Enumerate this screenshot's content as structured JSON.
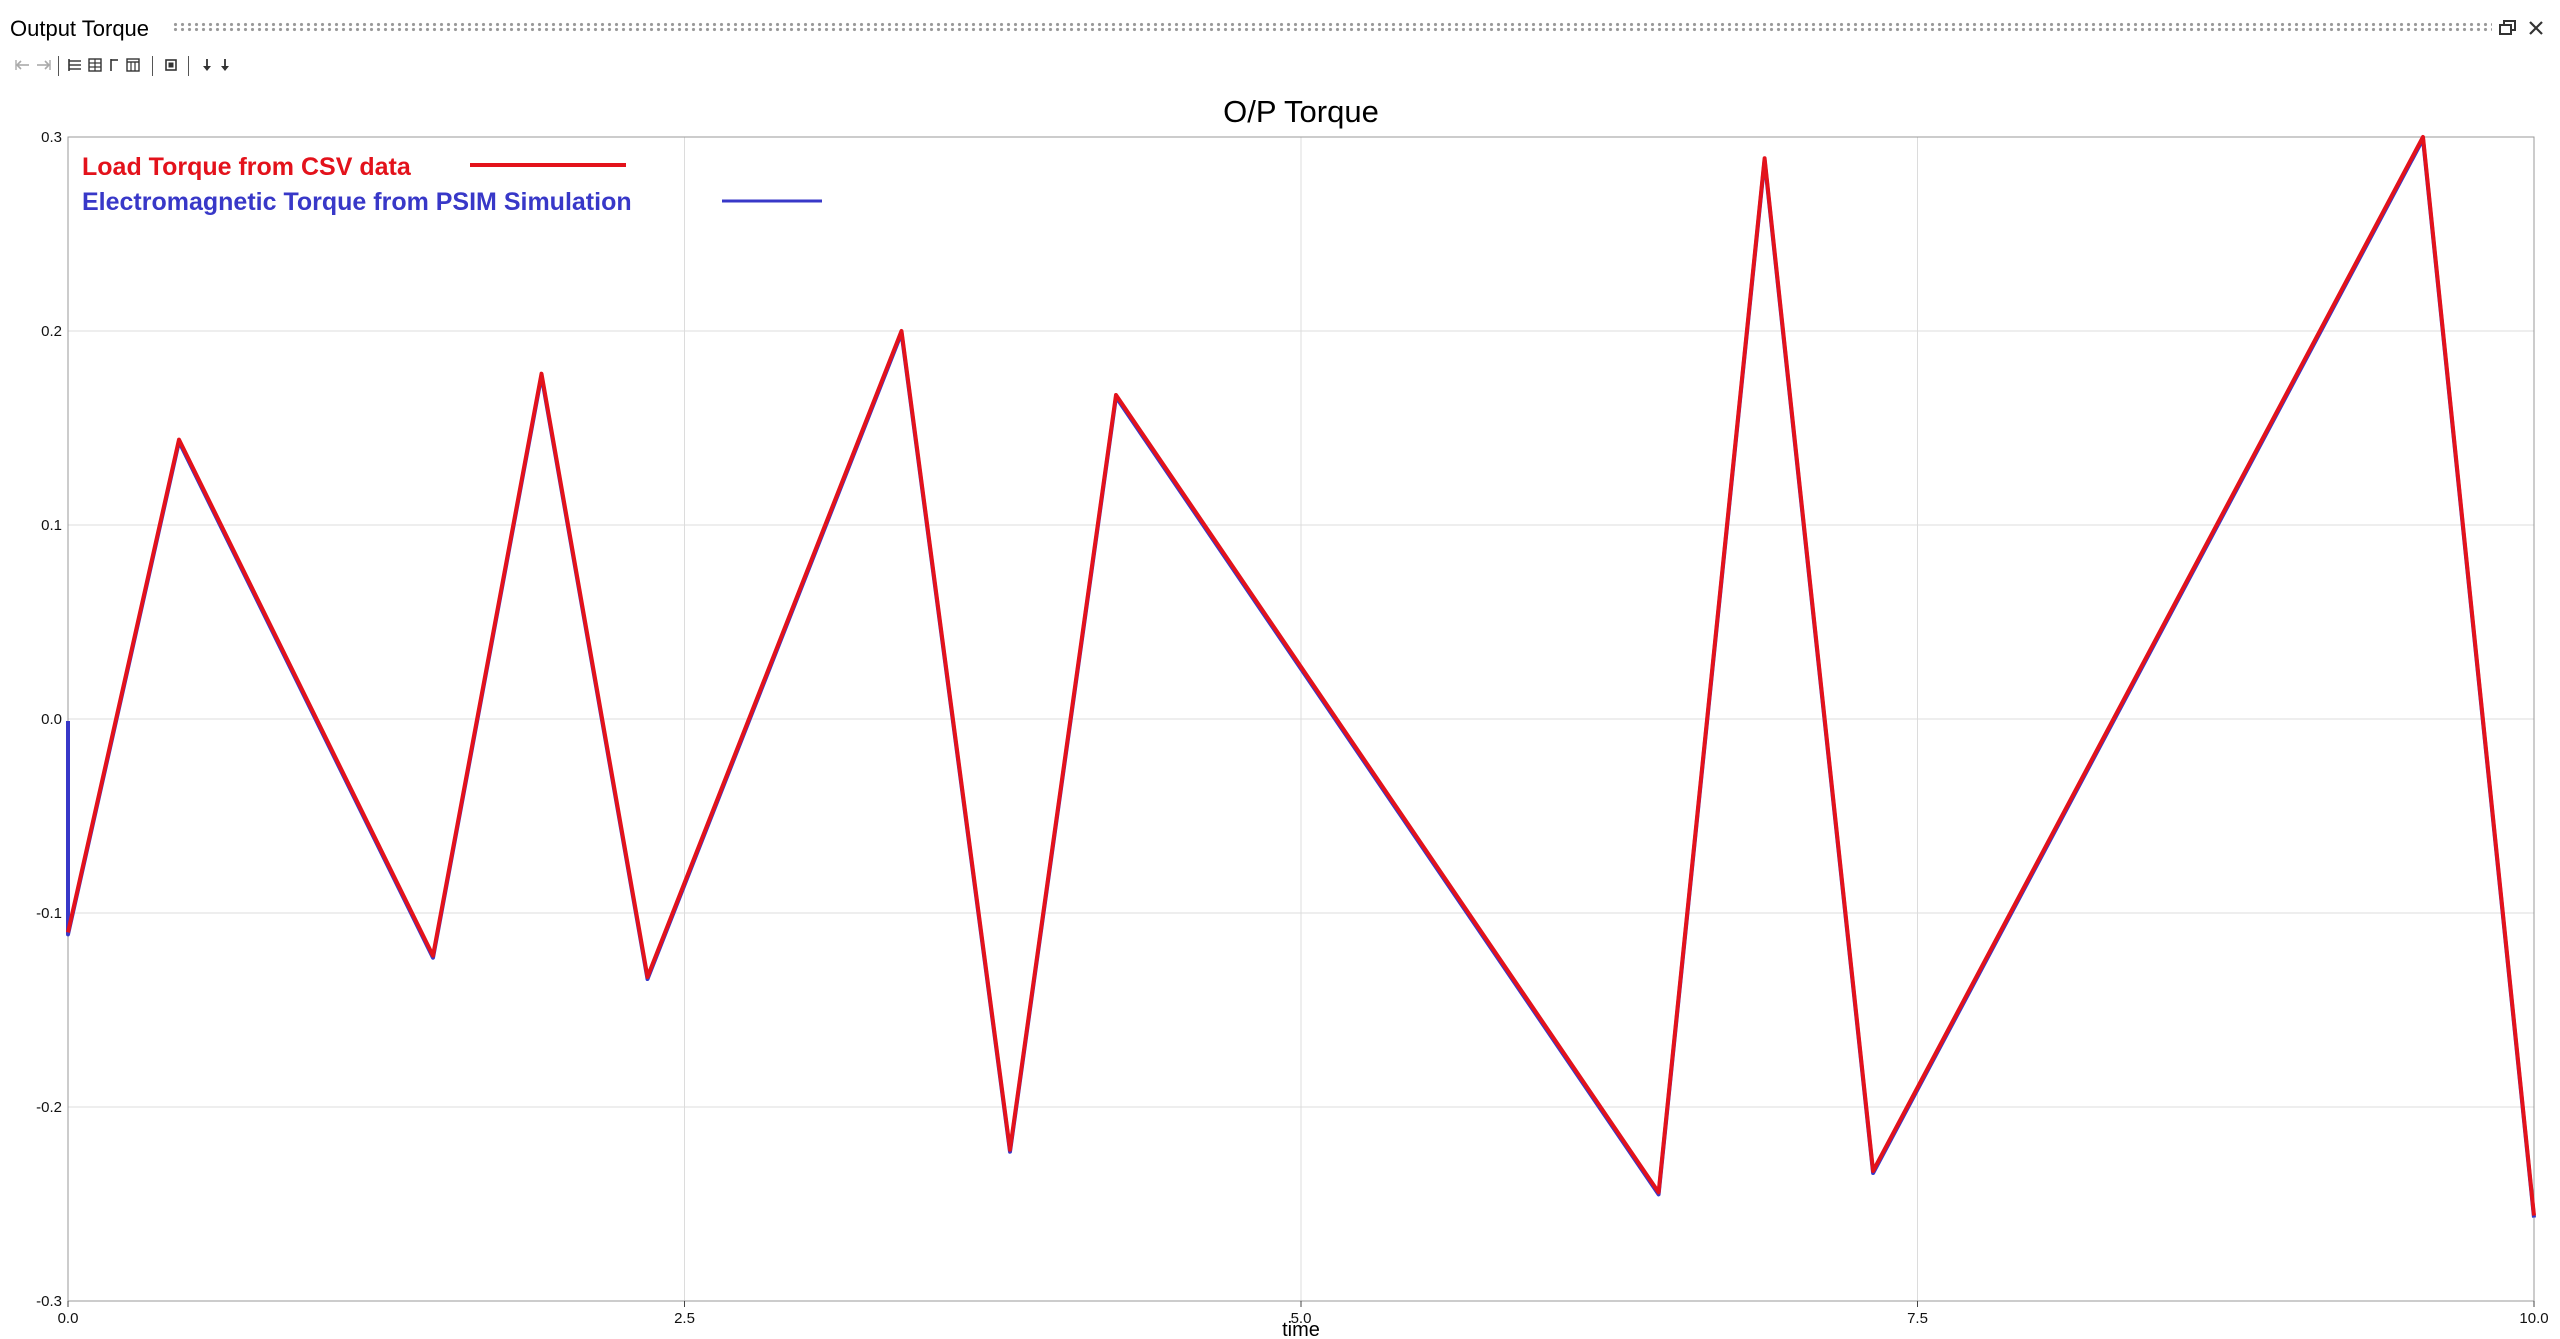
{
  "window": {
    "title": "Output Torque"
  },
  "toolbar": {
    "icons": [
      "back-arrow-icon",
      "forward-arrow-icon",
      "layout-left-icon",
      "layout-grid-icon",
      "measure-icon",
      "table-icon",
      "zoom-box-icon",
      "sort-down-icon",
      "sort-down-alt-icon"
    ]
  },
  "colors": {
    "series1": "#e3121b",
    "series2": "#3838c8",
    "grid": "#dcdcdc",
    "axis": "#444444"
  },
  "chart_data": {
    "type": "line",
    "title": "O/P Torque",
    "xlabel": "time",
    "ylabel": "",
    "xlim": [
      0,
      10
    ],
    "ylim": [
      -0.3,
      0.3
    ],
    "xticks": [
      "0.0",
      "2.5",
      "5.0",
      "7.5",
      "10.0"
    ],
    "yticks": [
      "0.3",
      "0.2",
      "0.1",
      "0.0",
      "-0.1",
      "-0.2",
      "-0.3"
    ],
    "xtick_values": [
      0,
      2.5,
      5.0,
      7.5,
      10.0
    ],
    "ytick_values": [
      0.3,
      0.2,
      0.1,
      0.0,
      -0.1,
      -0.2,
      -0.3
    ],
    "grid": true,
    "legend_position": "top-left",
    "series": [
      {
        "name": "Load Torque from CSV data",
        "x": [
          0.0,
          0.45,
          1.48,
          1.92,
          2.35,
          3.38,
          3.82,
          4.25,
          6.45,
          6.88,
          7.32,
          9.55,
          10.0
        ],
        "y": [
          -0.11,
          0.144,
          -0.122,
          0.178,
          -0.133,
          0.2,
          -0.222,
          0.167,
          -0.244,
          0.289,
          -0.233,
          0.3,
          -0.256
        ]
      },
      {
        "name": "Electromagnetic Torque from PSIM Simulation",
        "x": [
          0.0,
          0.0,
          0.45,
          1.48,
          1.92,
          2.35,
          3.38,
          3.82,
          4.25,
          6.45,
          6.88,
          7.32,
          9.55,
          10.0
        ],
        "y": [
          0.0,
          -0.11,
          0.144,
          -0.122,
          0.178,
          -0.133,
          0.2,
          -0.222,
          0.167,
          -0.244,
          0.289,
          -0.233,
          0.3,
          -0.256
        ]
      }
    ]
  }
}
